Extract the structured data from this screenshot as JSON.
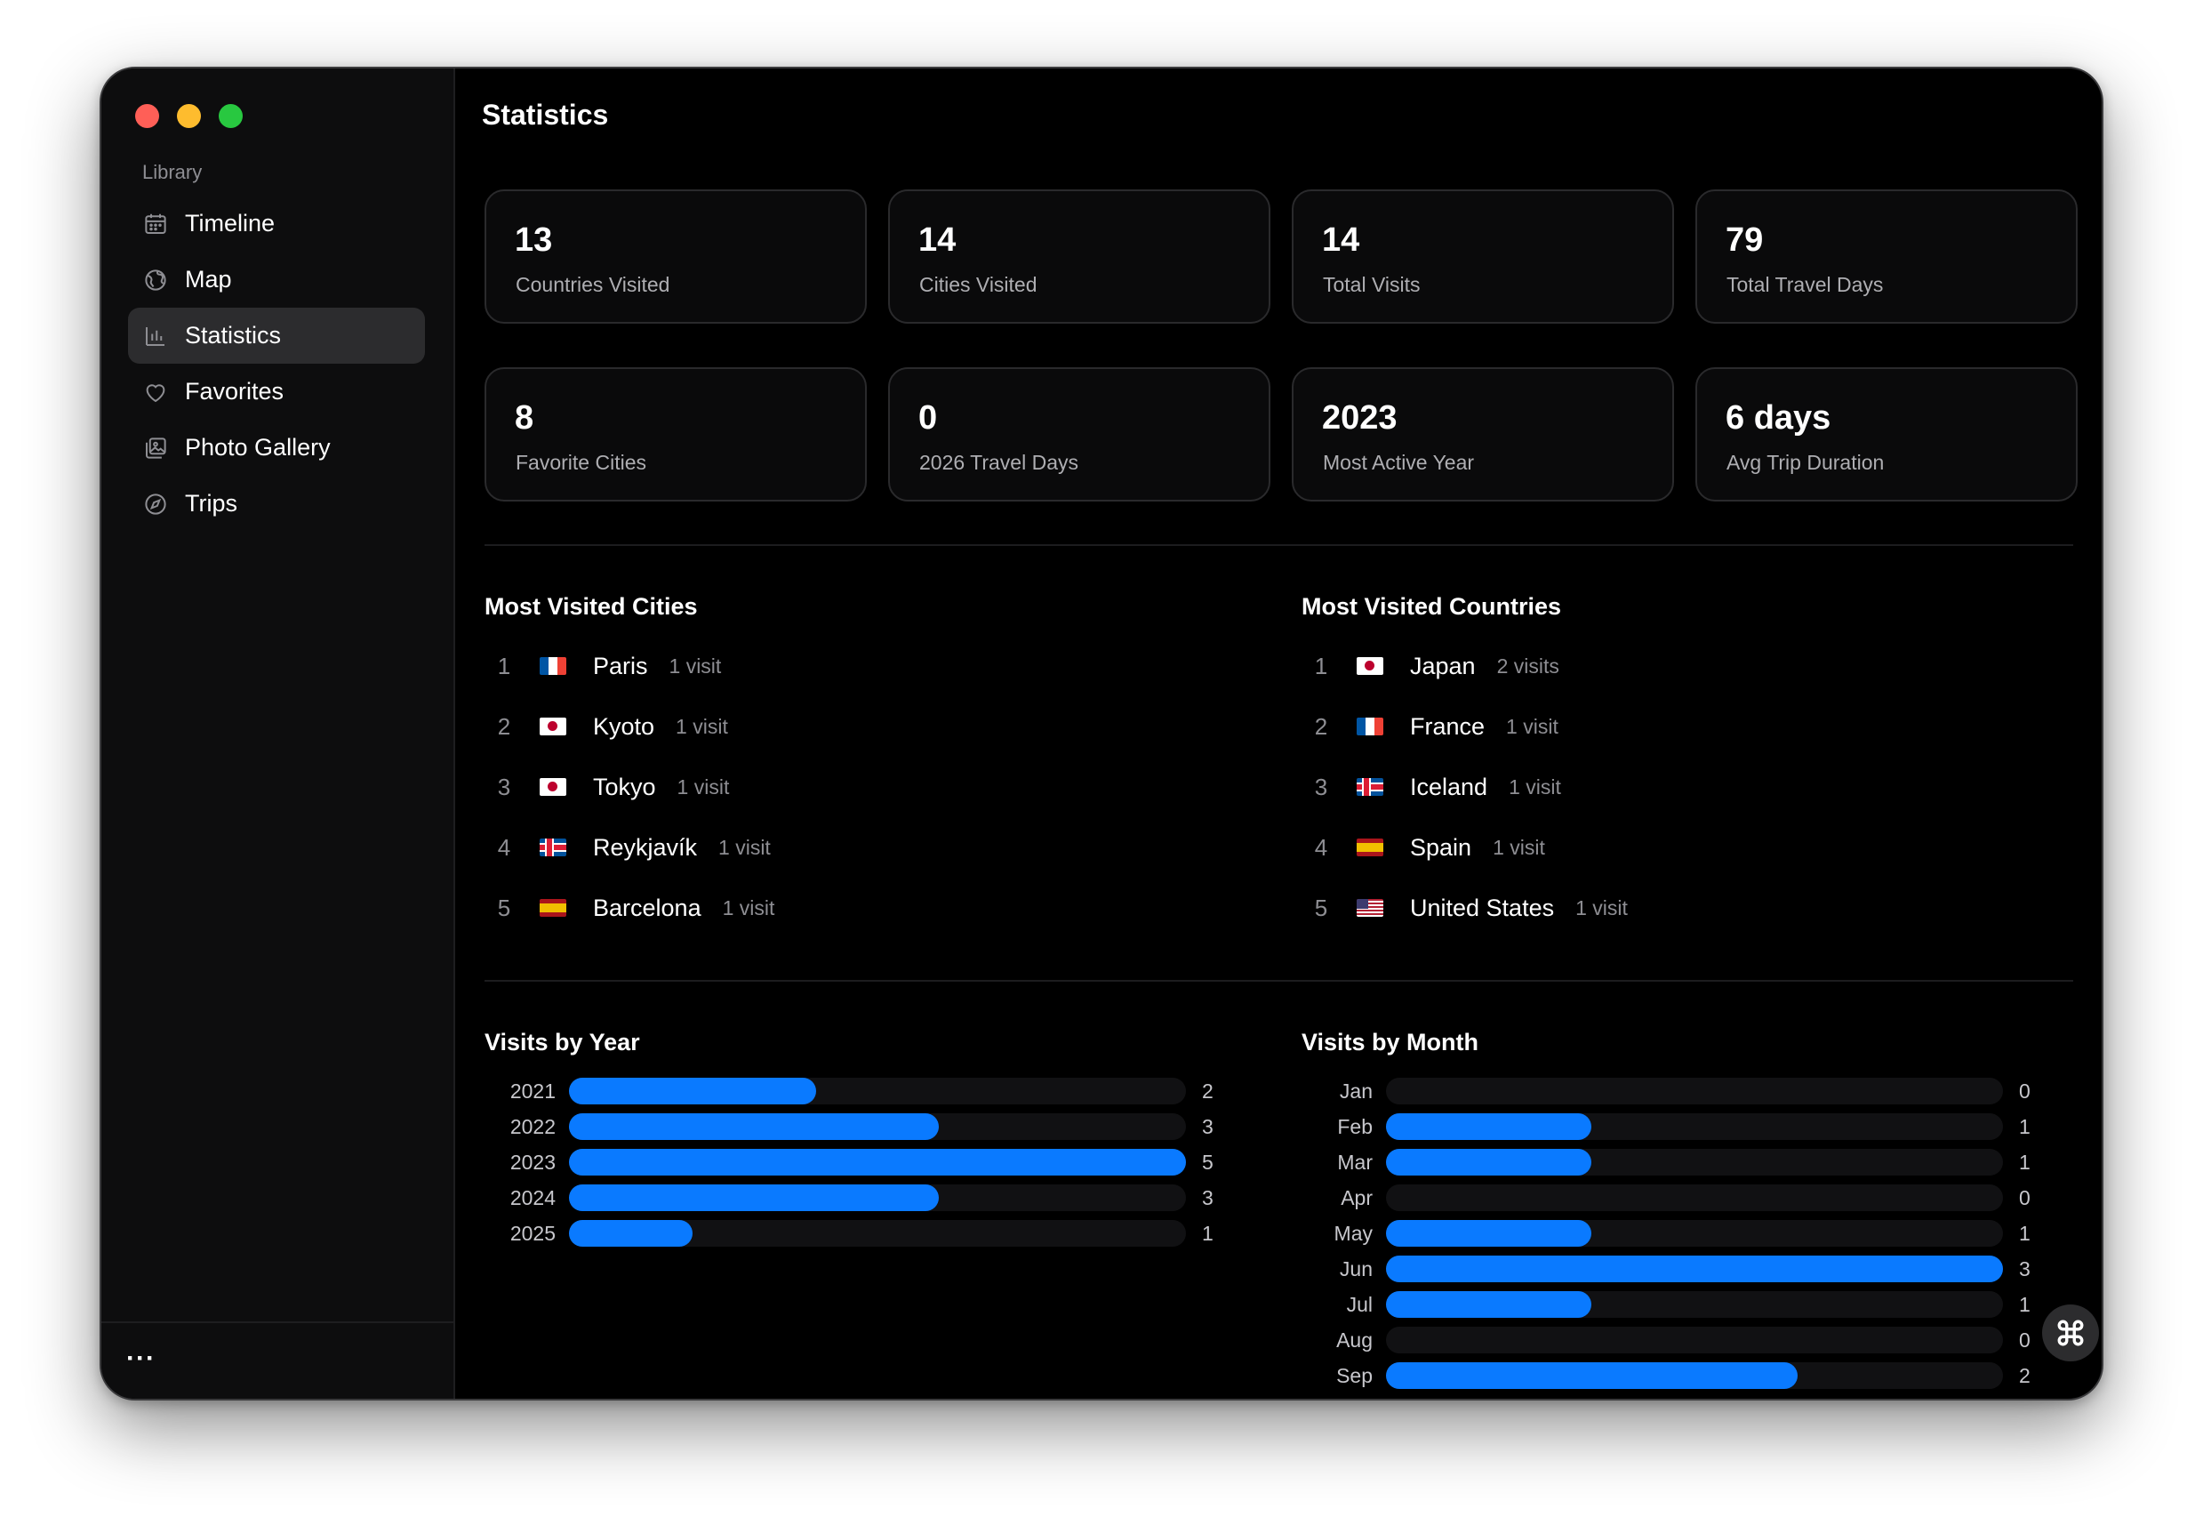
{
  "sidebar": {
    "section_label": "Library",
    "items": [
      {
        "label": "Timeline",
        "icon": "calendar-icon"
      },
      {
        "label": "Map",
        "icon": "globe-icon"
      },
      {
        "label": "Statistics",
        "icon": "chart-icon"
      },
      {
        "label": "Favorites",
        "icon": "heart-icon"
      },
      {
        "label": "Photo Gallery",
        "icon": "photo-icon"
      },
      {
        "label": "Trips",
        "icon": "compass-icon"
      }
    ],
    "active_item": "Statistics",
    "more_label": "···"
  },
  "header": {
    "title": "Statistics"
  },
  "stats": [
    {
      "value": "13",
      "label": "Countries Visited"
    },
    {
      "value": "14",
      "label": "Cities Visited"
    },
    {
      "value": "14",
      "label": "Total Visits"
    },
    {
      "value": "79",
      "label": "Total Travel Days"
    },
    {
      "value": "8",
      "label": "Favorite Cities"
    },
    {
      "value": "0",
      "label": "2026 Travel Days"
    },
    {
      "value": "2023",
      "label": "Most Active Year"
    },
    {
      "value": "6 days",
      "label": "Avg Trip Duration"
    }
  ],
  "most_visited_cities": {
    "title": "Most Visited Cities",
    "items": [
      {
        "rank": "1",
        "flag": "fr",
        "name": "Paris",
        "count": "1 visit"
      },
      {
        "rank": "2",
        "flag": "jp",
        "name": "Kyoto",
        "count": "1 visit"
      },
      {
        "rank": "3",
        "flag": "jp",
        "name": "Tokyo",
        "count": "1 visit"
      },
      {
        "rank": "4",
        "flag": "is",
        "name": "Reykjavík",
        "count": "1 visit"
      },
      {
        "rank": "5",
        "flag": "es",
        "name": "Barcelona",
        "count": "1 visit"
      }
    ]
  },
  "most_visited_countries": {
    "title": "Most Visited Countries",
    "items": [
      {
        "rank": "1",
        "flag": "jp",
        "name": "Japan",
        "count": "2 visits"
      },
      {
        "rank": "2",
        "flag": "fr",
        "name": "France",
        "count": "1 visit"
      },
      {
        "rank": "3",
        "flag": "is",
        "name": "Iceland",
        "count": "1 visit"
      },
      {
        "rank": "4",
        "flag": "es",
        "name": "Spain",
        "count": "1 visit"
      },
      {
        "rank": "5",
        "flag": "us",
        "name": "United States",
        "count": "1 visit"
      }
    ]
  },
  "chart_data": [
    {
      "type": "bar",
      "title": "Visits by Year",
      "categories": [
        "2021",
        "2022",
        "2023",
        "2024",
        "2025"
      ],
      "values": [
        2,
        3,
        5,
        3,
        1
      ],
      "max": 5,
      "orientation": "horizontal",
      "color": "#0a7aff"
    },
    {
      "type": "bar",
      "title": "Visits by Month",
      "categories": [
        "Jan",
        "Feb",
        "Mar",
        "Apr",
        "May",
        "Jun",
        "Jul",
        "Aug",
        "Sep"
      ],
      "values": [
        0,
        1,
        1,
        0,
        1,
        3,
        1,
        0,
        2
      ],
      "max": 3,
      "orientation": "horizontal",
      "color": "#0a7aff"
    }
  ],
  "colors": {
    "accent": "#0a7aff",
    "background": "#000000",
    "sidebar": "#0d0d0e"
  }
}
